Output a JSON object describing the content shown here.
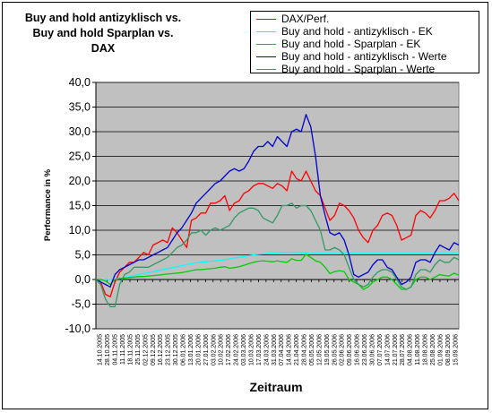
{
  "chart_data": {
    "type": "line",
    "title": [
      "Buy and hold antizyklisch vs.",
      "Buy and hold Sparplan vs.",
      "DAX"
    ],
    "xlabel": "Zeitraum",
    "ylabel": "Performance in %",
    "ylim": [
      -10,
      40
    ],
    "yticks": [
      -10,
      -5,
      0,
      5,
      10,
      15,
      20,
      25,
      30,
      35,
      40
    ],
    "ytick_labels": [
      "-10,0",
      "-5,0",
      "0,0",
      "5,0",
      "10,0",
      "15,0",
      "20,0",
      "25,0",
      "30,0",
      "35,0",
      "40,0"
    ],
    "x_tick_labels": [
      "14.10.2005",
      "28.10.2005",
      "04.11.2005",
      "11.11.2005",
      "18.11.2005",
      "25.11.2005",
      "02.12.2005",
      "09.12.2005",
      "16.12.2005",
      "23.12.2005",
      "30.12.2005",
      "06.01.2006",
      "13.01.2006",
      "20.01.2006",
      "27.01.2006",
      "03.02.2006",
      "10.02.2006",
      "17.02.2006",
      "24.02.2006",
      "03.03.2006",
      "10.03.2006",
      "17.03.2006",
      "24.03.2006",
      "31.03.2006",
      "07.04.2006",
      "14.04.2006",
      "21.04.2006",
      "28.04.2006",
      "05.05.2006",
      "12.05.2006",
      "19.05.2006",
      "26.05.2006",
      "02.06.2006",
      "09.06.2006",
      "16.06.2006",
      "23.06.2006",
      "30.06.2006",
      "07.07.2006",
      "14.07.2006",
      "21.07.2006",
      "28.07.2006",
      "04.08.2006",
      "11.08.2006",
      "18.08.2006",
      "25.08.2006",
      "01.09.2006",
      "08.09.2006",
      "15.09.2006"
    ],
    "grid": true,
    "legend_position": "top-right",
    "background": "#c0c0c0",
    "series": [
      {
        "name": "DAX/Perf.",
        "color": "#ff0000",
        "values": [
          0,
          -0.5,
          -3,
          -3.5,
          -0.5,
          1.5,
          2.5,
          3.5,
          3.5,
          4.5,
          5.5,
          5,
          7,
          7.5,
          8,
          7.5,
          10.5,
          9.5,
          8,
          6.5,
          12,
          12.5,
          13.5,
          13.5,
          15.5,
          15.5,
          16,
          17,
          14,
          15.5,
          16,
          17.5,
          18,
          19,
          19.5,
          19.5,
          19,
          18.5,
          19.5,
          19,
          18,
          22,
          20.5,
          20,
          22,
          20,
          18,
          17,
          14.5,
          12,
          13,
          15.5,
          15,
          14,
          12.5,
          10,
          8.5,
          7.5,
          10,
          11,
          13,
          13.5,
          13,
          11,
          8,
          8.5,
          9,
          13,
          14,
          13.5,
          12.5,
          14,
          16,
          16,
          16.5,
          17.5,
          16
        ]
      },
      {
        "name": "Buy and hold - antizyklisch - EK",
        "color": "#00ffff",
        "values": [
          0,
          0,
          0,
          0,
          0.1,
          0.2,
          0.4,
          0.6,
          0.8,
          1,
          1.2,
          1.4,
          1.6,
          1.8,
          2,
          2.2,
          2.4,
          2.6,
          2.8,
          3,
          3.2,
          3.4,
          3.5,
          3.6,
          3.7,
          3.8,
          3.9,
          4,
          4.2,
          4.4,
          4.5,
          4.6,
          4.8,
          5,
          5.1,
          5.2,
          5.3,
          5.4,
          5.4,
          5.5,
          5.5,
          5.5,
          5.5,
          5.4,
          5.4,
          5.3,
          5.3,
          5.3,
          5.3,
          5.3,
          5.3,
          5.3,
          5.3,
          5.3,
          5.3,
          5.3,
          5.3,
          5.3,
          5.3,
          5.3,
          5.3,
          5.3,
          5.3,
          5.3,
          5.3,
          5.3,
          5.3,
          5.3,
          5.3,
          5.3,
          5.3,
          5.3,
          5.3,
          5.3,
          5.3,
          5.3,
          5.3
        ]
      },
      {
        "name": "Buy and hold - Sparplan - EK",
        "color": "#00cc00",
        "values": [
          0,
          0,
          -0.3,
          -1,
          0,
          0.2,
          0.3,
          0.4,
          0.5,
          0.6,
          0.6,
          0.7,
          0.8,
          0.9,
          1,
          1.1,
          1.2,
          1.3,
          1.4,
          1.6,
          1.8,
          2,
          2,
          2.1,
          2.2,
          2.3,
          2.5,
          2.6,
          2.3,
          2.4,
          2.6,
          2.9,
          3.2,
          3.5,
          3.7,
          3.8,
          3.7,
          3.6,
          3.8,
          3.6,
          3.5,
          4.2,
          3.9,
          3.9,
          5.1,
          4.5,
          3.8,
          3.5,
          2.5,
          1.2,
          1.6,
          1.8,
          1.6,
          0,
          -0.5,
          -1,
          -2,
          -1.5,
          -0.5,
          0,
          0.5,
          0.5,
          0,
          -1,
          -2,
          -2,
          -1.5,
          0,
          0.5,
          0.5,
          0,
          0.5,
          1,
          0.8,
          0.7,
          1.3,
          0.9
        ]
      },
      {
        "name": "Buy and hold - antizyklisch - Werte",
        "color": "#0000cc",
        "values": [
          0,
          -0.5,
          -1,
          -1.5,
          1,
          2,
          2.5,
          3,
          3.5,
          4,
          4,
          4.5,
          5,
          5.5,
          6,
          6.5,
          8,
          9.5,
          10.5,
          12,
          13.5,
          15.5,
          16.5,
          17.5,
          18.5,
          19.5,
          20,
          21,
          22,
          22.5,
          22,
          22.5,
          24,
          26,
          27,
          27,
          28,
          27,
          29,
          28,
          27,
          30,
          30.5,
          30,
          33.5,
          31,
          25,
          17,
          13,
          9.5,
          9,
          9.5,
          8,
          5,
          1,
          0.5,
          1,
          1.5,
          3,
          4,
          4,
          2.5,
          2,
          0.5,
          -1,
          -0.5,
          0.5,
          3.5,
          4,
          4,
          3.5,
          5.5,
          7,
          6.5,
          6,
          7.5,
          7
        ]
      },
      {
        "name": "Buy and hold - Sparplan - Werte",
        "color": "#339966",
        "values": [
          0,
          -1,
          -4,
          -5.5,
          -5.5,
          -1,
          1,
          1.5,
          2.5,
          2.5,
          2.5,
          2.5,
          3,
          3.5,
          4,
          4.5,
          5.5,
          6.5,
          7,
          8,
          9.5,
          9.5,
          10,
          9,
          10,
          10.5,
          10,
          10.5,
          11,
          12.5,
          13.5,
          14,
          14.5,
          14.5,
          14,
          12.5,
          12,
          11.5,
          13,
          15,
          15,
          15.5,
          14.5,
          15,
          15,
          14,
          12,
          10,
          6,
          6,
          6.5,
          6,
          5,
          2.5,
          0,
          -1,
          -1.5,
          -1,
          0.5,
          1.5,
          2,
          2,
          1.5,
          0,
          -1.5,
          -2,
          -1.5,
          1,
          2,
          2,
          1.5,
          3,
          4,
          3.5,
          3.5,
          4.5,
          4
        ]
      }
    ]
  }
}
